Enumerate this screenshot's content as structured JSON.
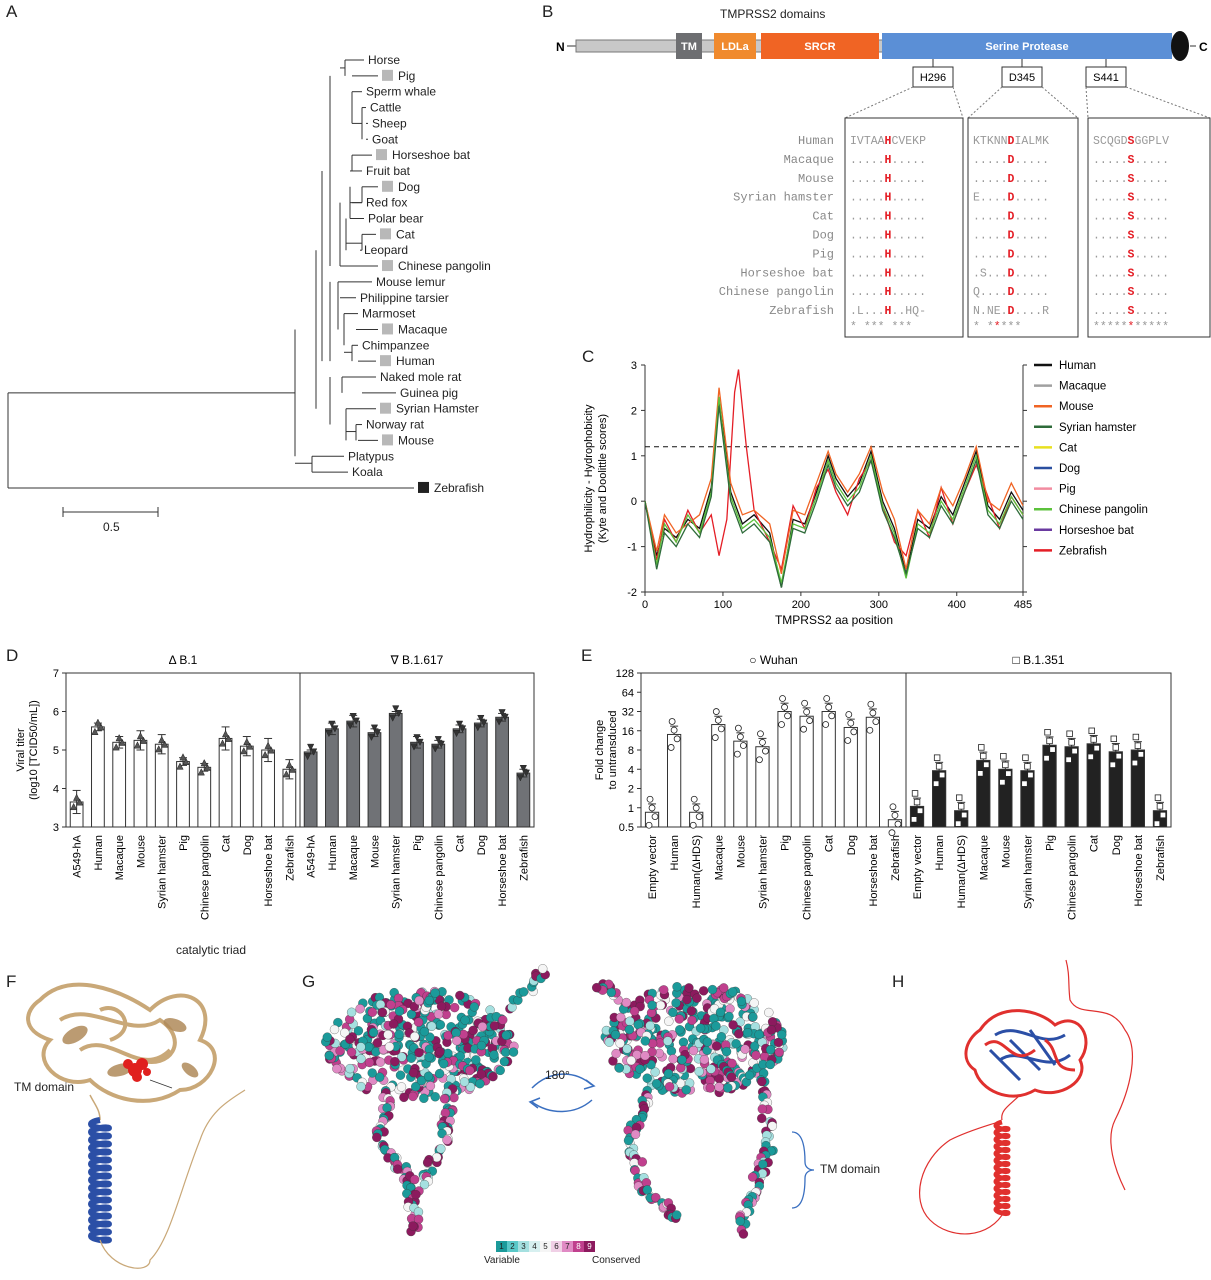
{
  "panels": {
    "A": {
      "letter": "A",
      "scale_label": "0.5",
      "taxa": [
        "Horse",
        "Pig",
        "Sperm whale",
        "Cattle",
        "Sheep",
        "Goat",
        "Horseshoe bat",
        "Fruit bat",
        "Dog",
        "Red fox",
        "Polar bear",
        "Cat",
        "Leopard",
        "Chinese pangolin",
        "Mouse lemur",
        "Philippine tarsier",
        "Marmoset",
        "Macaque",
        "Chimpanzee",
        "Human",
        "Naked mole rat",
        "Guinea pig",
        "Syrian Hamster",
        "Norway rat",
        "Mouse",
        "Platypus",
        "Koala",
        "Zebrafish"
      ],
      "marked": [
        "Pig",
        "Horseshoe bat",
        "Dog",
        "Cat",
        "Chinese pangolin",
        "Macaque",
        "Human",
        "Syrian Hamster",
        "Mouse",
        "Zebrafish"
      ]
    },
    "B": {
      "letter": "B",
      "title": "TMPRSS2 domains",
      "n_term": "N",
      "c_term": "C",
      "domains": [
        {
          "label": "TM",
          "color": "#6d6e71"
        },
        {
          "label": "LDLa",
          "color": "#f08a2e"
        },
        {
          "label": "SRCR",
          "color": "#f06424"
        },
        {
          "label": "Serine Protease",
          "color": "#5b8fd6"
        }
      ],
      "sites": [
        "H296",
        "D345",
        "S441"
      ],
      "species": [
        "Human",
        "Macaque",
        "Mouse",
        "Syrian hamster",
        "Cat",
        "Dog",
        "Pig",
        "Horseshoe bat",
        "Chinese pangolin",
        "Zebrafish"
      ],
      "alignment": [
        [
          "IVTAAHCVEKP",
          "KTKNNDIALMK",
          "SCQGDSGGPLV"
        ],
        [
          ".....H.....",
          ".....D.....",
          ".....S....."
        ],
        [
          ".....H.....",
          ".....D.....",
          ".....S....."
        ],
        [
          ".....H.....",
          "E....D.....",
          ".....S....."
        ],
        [
          ".....H.....",
          ".....D.....",
          ".....S....."
        ],
        [
          ".....H.....",
          ".....D.....",
          ".....S....."
        ],
        [
          ".....H.....",
          ".....D.....",
          ".....S....."
        ],
        [
          ".....H.....",
          ".S...D.....",
          ".....S....."
        ],
        [
          ".....H.....",
          "Q....D.....",
          ".....S....."
        ],
        [
          ".L...H..HQ-",
          "N.NE.D....R",
          ".....S....."
        ]
      ],
      "conservation": [
        "* *** *** ",
        "  * *****  ",
        "***********"
      ]
    },
    "C": {
      "letter": "C",
      "legend": [
        {
          "name": "Human",
          "color": "#111111"
        },
        {
          "name": "Macaque",
          "color": "#a0a0a0"
        },
        {
          "name": "Mouse",
          "color": "#f06424"
        },
        {
          "name": "Syrian hamster",
          "color": "#2e6b3a"
        },
        {
          "name": "Cat",
          "color": "#e8e020"
        },
        {
          "name": "Dog",
          "color": "#2a4fa0"
        },
        {
          "name": "Pig",
          "color": "#f28ca0"
        },
        {
          "name": "Chinese pangolin",
          "color": "#5cc23c"
        },
        {
          "name": "Horseshoe bat",
          "color": "#6a3aa0"
        },
        {
          "name": "Zebrafish",
          "color": "#e41e26"
        }
      ]
    },
    "D": {
      "letter": "D",
      "group1": "B.1",
      "group2": "B.1.617",
      "delta_symbol": "Δ",
      "nabla_symbol": "∇"
    },
    "E": {
      "letter": "E",
      "group1": "Wuhan",
      "group2": "B.1.351",
      "circle_symbol": "○",
      "square_symbol": "□"
    },
    "F": {
      "letter": "F",
      "label_catalytic": "catalytic triad",
      "label_tm": "TM domain"
    },
    "G": {
      "letter": "G",
      "rotation": "180°",
      "label_tm": "TM domain",
      "scale_numbers": [
        "1",
        "2",
        "3",
        "4",
        "5",
        "6",
        "7",
        "8",
        "9"
      ],
      "scale_colors": [
        "#1b9a9a",
        "#5ac8c8",
        "#a5e0e0",
        "#d7f0f0",
        "#f5f5f5",
        "#f0d0e6",
        "#e08ac4",
        "#c0408e",
        "#8c1a5e"
      ],
      "label_variable": "Variable",
      "label_conserved": "Conserved"
    },
    "H": {
      "letter": "H"
    }
  },
  "chart_data": [
    {
      "panel": "C",
      "type": "line",
      "xlabel": "TMPRSS2 aa position",
      "ylabel": "Hydrophilicity - Hydrophobicity",
      "ylabel2": "(Kyte and Doolittle scores)",
      "xlim": [
        0,
        485
      ],
      "ylim": [
        -2,
        3
      ],
      "xticks": [
        0,
        100,
        200,
        300,
        400,
        485
      ],
      "yticks": [
        -2,
        -1,
        0,
        1,
        2,
        3
      ],
      "threshold": 1.2,
      "series": [
        {
          "name": "Human",
          "x": [
            0,
            15,
            25,
            40,
            55,
            70,
            85,
            95,
            100,
            110,
            125,
            140,
            160,
            175,
            190,
            205,
            220,
            235,
            245,
            260,
            275,
            290,
            305,
            320,
            335,
            350,
            365,
            380,
            395,
            410,
            425,
            440,
            455,
            470,
            485
          ],
          "y": [
            0,
            -1.2,
            -0.6,
            -0.8,
            -0.4,
            -0.6,
            0.3,
            2.2,
            1.6,
            0.2,
            -0.5,
            -0.3,
            -0.7,
            -1.9,
            -0.4,
            -0.5,
            0.2,
            1.0,
            0.5,
            0.1,
            0.4,
            1.1,
            0.0,
            -0.6,
            -1.6,
            -0.4,
            -0.6,
            0.1,
            -0.3,
            0.4,
            1.1,
            -0.1,
            -0.4,
            0.2,
            -0.2
          ]
        },
        {
          "name": "Zebrafish",
          "x": [
            0,
            15,
            25,
            40,
            55,
            70,
            85,
            95,
            105,
            115,
            120,
            130,
            140,
            160,
            175,
            190,
            205,
            220,
            235,
            245,
            260,
            275,
            290,
            305,
            320,
            335,
            350,
            365,
            380,
            395,
            410,
            425,
            440,
            455,
            470,
            485
          ],
          "y": [
            0,
            -1.3,
            -0.4,
            -0.9,
            -0.2,
            -0.7,
            -0.3,
            -1.2,
            -0.4,
            2.4,
            2.9,
            1.2,
            -0.2,
            -0.9,
            -1.5,
            -0.1,
            -0.6,
            0.3,
            0.7,
            0.2,
            -0.3,
            0.5,
            0.9,
            -0.1,
            -0.9,
            -1.2,
            -0.2,
            -0.8,
            0.3,
            -0.5,
            0.2,
            0.8,
            0.1,
            -0.6,
            0.1,
            -0.3
          ]
        },
        {
          "name": "Mouse",
          "x": [
            0,
            15,
            25,
            40,
            55,
            70,
            85,
            95,
            100,
            110,
            125,
            140,
            160,
            175,
            190,
            205,
            220,
            235,
            245,
            260,
            275,
            290,
            305,
            320,
            335,
            350,
            365,
            380,
            395,
            410,
            425,
            440,
            455,
            470,
            485
          ],
          "y": [
            0,
            -1.1,
            -0.3,
            -0.7,
            -0.5,
            -0.3,
            0.5,
            2.5,
            1.8,
            0.4,
            -0.3,
            -0.2,
            -0.5,
            -1.6,
            -0.2,
            -0.3,
            0.4,
            1.1,
            0.6,
            0.2,
            0.6,
            1.2,
            0.2,
            -0.4,
            -1.5,
            -0.2,
            -0.5,
            0.3,
            -0.1,
            0.5,
            1.2,
            0.0,
            -0.2,
            0.4,
            -0.1
          ]
        },
        {
          "name": "Chinese pangolin",
          "x": [
            0,
            15,
            25,
            40,
            55,
            70,
            85,
            95,
            100,
            110,
            125,
            140,
            160,
            175,
            190,
            205,
            220,
            235,
            245,
            260,
            275,
            290,
            305,
            320,
            335,
            350,
            365,
            380,
            395,
            410,
            425,
            440,
            455,
            470,
            485
          ],
          "y": [
            0,
            -1.4,
            -0.5,
            -0.9,
            -0.3,
            -0.7,
            0.2,
            2.3,
            1.5,
            0.1,
            -0.6,
            -0.4,
            -0.8,
            -1.8,
            -0.5,
            -0.6,
            0.1,
            0.9,
            0.4,
            0.0,
            0.3,
            1.0,
            -0.1,
            -0.7,
            -1.7,
            -0.5,
            -0.7,
            0.0,
            -0.4,
            0.3,
            1.0,
            -0.2,
            -0.5,
            0.1,
            -0.3
          ]
        },
        {
          "name": "Syrian hamster",
          "x": [
            0,
            15,
            25,
            40,
            55,
            70,
            85,
            95,
            100,
            110,
            125,
            140,
            160,
            175,
            190,
            205,
            220,
            235,
            245,
            260,
            275,
            290,
            305,
            320,
            335,
            350,
            365,
            380,
            395,
            410,
            425,
            440,
            455,
            470,
            485
          ],
          "y": [
            0,
            -1.5,
            -0.7,
            -1.0,
            -0.5,
            -0.8,
            0.1,
            2.1,
            1.4,
            0.0,
            -0.7,
            -0.5,
            -0.9,
            -1.9,
            -0.6,
            -0.7,
            0.0,
            0.8,
            0.3,
            -0.1,
            0.2,
            0.9,
            -0.2,
            -0.8,
            -1.6,
            -0.6,
            -0.8,
            -0.1,
            -0.5,
            0.2,
            0.9,
            -0.3,
            -0.6,
            0.0,
            -0.4
          ]
        }
      ]
    },
    {
      "panel": "D",
      "type": "bar",
      "ylabel": "Viral titer",
      "ylabel2": "(log10 [TCID50/mL])",
      "ylim": [
        3,
        7
      ],
      "yticks": [
        3,
        4,
        5,
        6,
        7
      ],
      "categories": [
        "A549-hA",
        "Human",
        "Macaque",
        "Mouse",
        "Syrian hamster",
        "Pig",
        "Chinese pangolin",
        "Cat",
        "Dog",
        "Horseshoe bat",
        "Zebrafish",
        "A549-hA",
        "Human",
        "Macaque",
        "Mouse",
        "Syrian hamster",
        "Pig",
        "Chinese pangolin",
        "Cat",
        "Dog",
        "Horseshoe bat",
        "Zebrafish"
      ],
      "values": [
        3.65,
        5.6,
        5.2,
        5.25,
        5.15,
        4.7,
        4.55,
        5.3,
        5.1,
        5.0,
        4.5,
        4.95,
        5.55,
        5.75,
        5.45,
        5.95,
        5.2,
        5.15,
        5.55,
        5.7,
        5.85,
        4.4
      ],
      "errors": [
        0.3,
        0.1,
        0.15,
        0.25,
        0.25,
        0.1,
        0.1,
        0.3,
        0.25,
        0.3,
        0.25,
        0.05,
        0.15,
        0.15,
        0.1,
        0.05,
        0.15,
        0.1,
        0.1,
        0.1,
        0.1,
        0.1
      ],
      "groups": [
        0,
        0,
        0,
        0,
        0,
        0,
        0,
        0,
        0,
        0,
        0,
        1,
        1,
        1,
        1,
        1,
        1,
        1,
        1,
        1,
        1,
        1
      ]
    },
    {
      "panel": "E",
      "type": "bar",
      "ylabel": "Fold change",
      "ylabel2": "to untransduced",
      "scale": "log2",
      "ylim": [
        0.5,
        128
      ],
      "yticks": [
        0.5,
        1,
        2,
        4,
        8,
        16,
        32,
        64,
        128
      ],
      "ytick_labels": [
        "0.5",
        "1",
        "2",
        "4",
        "8",
        "16",
        "32",
        "64",
        "128"
      ],
      "categories": [
        "Empty vector",
        "Human",
        "Human(ΔHDS)",
        "Macaque",
        "Mouse",
        "Syrian hamster",
        "Pig",
        "Chinese pangolin",
        "Cat",
        "Dog",
        "Horseshoe bat",
        "Zebrafish",
        "Empty vector",
        "Human",
        "Human(ΔHDS)",
        "Macaque",
        "Mouse",
        "Syrian hamster",
        "Pig",
        "Chinese pangolin",
        "Cat",
        "Dog",
        "Horseshoe bat",
        "Zebrafish"
      ],
      "values": [
        0.85,
        14,
        0.85,
        20,
        11,
        9,
        32,
        27,
        32,
        18,
        26,
        0.65,
        1.05,
        3.8,
        0.9,
        5.5,
        4.0,
        3.8,
        9.5,
        9,
        10,
        7.5,
        8,
        0.9
      ],
      "groups": [
        0,
        0,
        0,
        0,
        0,
        0,
        0,
        0,
        0,
        0,
        0,
        0,
        1,
        1,
        1,
        1,
        1,
        1,
        1,
        1,
        1,
        1,
        1,
        1
      ]
    }
  ]
}
